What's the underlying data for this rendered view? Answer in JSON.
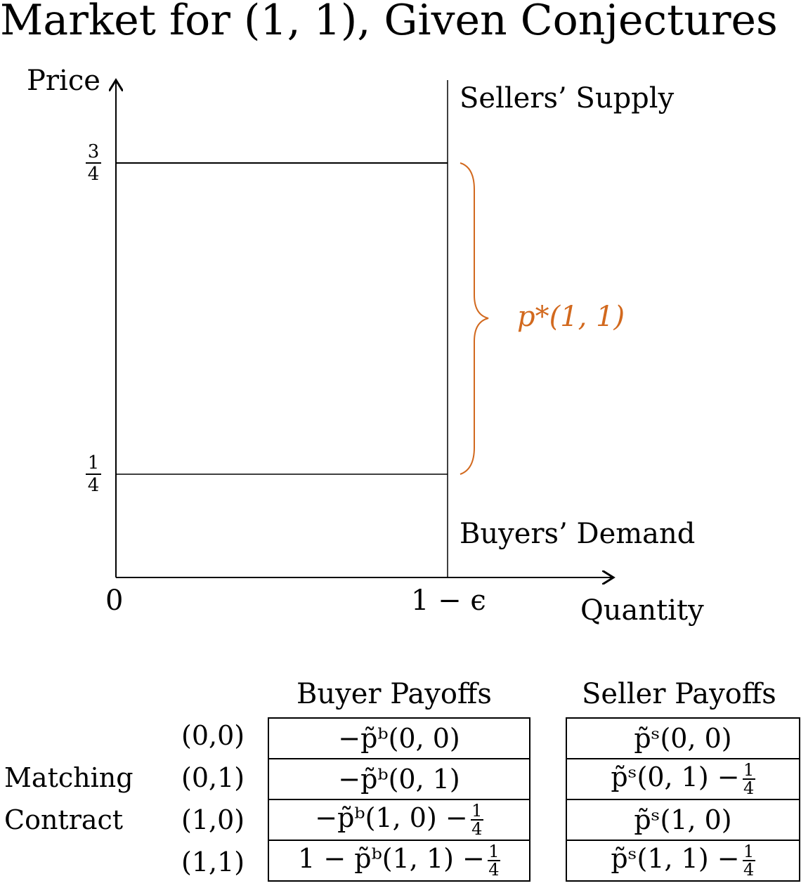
{
  "title": "Market for (1, 1), Given Conjectures",
  "axes": {
    "ylabel": "Price",
    "xlabel": "Quantity",
    "x_origin_label": "0",
    "x_tick_label": "1 − ϵ"
  },
  "y_ticks": {
    "high": {
      "num": "3",
      "den": "4"
    },
    "low": {
      "num": "1",
      "den": "4"
    }
  },
  "curves": {
    "supply_label": "Sellers’ Supply",
    "demand_label": "Buyers’ Demand"
  },
  "bracket": {
    "label": "p*(1, 1)",
    "color": "#d2691e"
  },
  "table": {
    "buyer_header": "Buyer Payoffs",
    "seller_header": "Seller Payoffs",
    "side_label_1": "Matching",
    "side_label_2": "Contract",
    "rows": [
      {
        "key": "(0,0)",
        "buyer": "−p̃ᵇ(0, 0)",
        "buyer_frac": "",
        "seller": "p̃ˢ(0, 0)",
        "seller_frac": ""
      },
      {
        "key": "(0,1)",
        "buyer": "−p̃ᵇ(0, 1)",
        "buyer_frac": "",
        "seller": "p̃ˢ(0, 1) −",
        "seller_frac": "1/4"
      },
      {
        "key": "(1,0)",
        "buyer": "−p̃ᵇ(1, 0) −",
        "buyer_frac": "1/4",
        "seller": "p̃ˢ(1, 0)",
        "seller_frac": ""
      },
      {
        "key": "(1,1)",
        "buyer": "1 − p̃ᵇ(1, 1) −",
        "buyer_frac": "1/4",
        "seller": "p̃ˢ(1, 1) −",
        "seller_frac": "1/4"
      }
    ]
  }
}
